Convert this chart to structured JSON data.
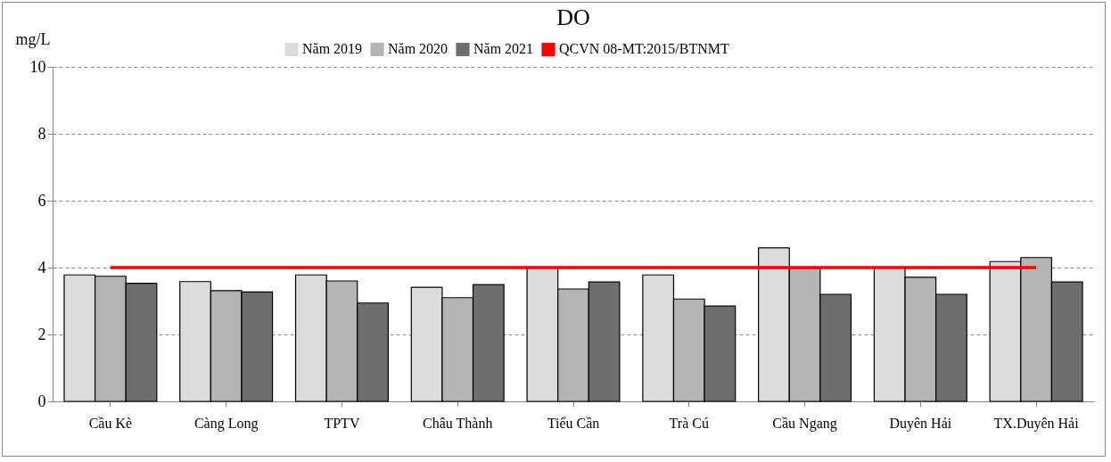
{
  "chart_data": {
    "type": "bar",
    "title": "DO",
    "ylabel": "mg/L",
    "categories": [
      "Cầu Kè",
      "Càng Long",
      "TPTV",
      "Châu Thành",
      "Tiểu Cần",
      "Trà Cú",
      "Cầu Ngang",
      "Duyên Hải",
      "TX.Duyên Hải"
    ],
    "series": [
      {
        "name": "Năm 2019",
        "color": "#dcdcdc",
        "values": [
          3.78,
          3.58,
          3.78,
          3.41,
          4.0,
          3.78,
          4.59,
          4.0,
          4.18
        ]
      },
      {
        "name": "Năm 2020",
        "color": "#b4b4b4",
        "values": [
          3.74,
          3.31,
          3.6,
          3.1,
          3.36,
          3.06,
          3.98,
          3.71,
          4.3
        ]
      },
      {
        "name": "Năm 2021",
        "color": "#6e6e6e",
        "values": [
          3.53,
          3.27,
          2.94,
          3.49,
          3.57,
          2.85,
          3.2,
          3.2,
          3.57
        ]
      },
      {
        "name": "QCVN 08-MT:2015/BTNMT",
        "type": "line",
        "color": "#ff0000",
        "line_style": "solid",
        "values": [
          4,
          4,
          4,
          4,
          4,
          4,
          4,
          4,
          4
        ]
      }
    ],
    "ylim": [
      0,
      10
    ],
    "yticks": [
      0,
      2,
      4,
      6,
      8,
      10
    ],
    "grid": "y",
    "legend": "top"
  }
}
